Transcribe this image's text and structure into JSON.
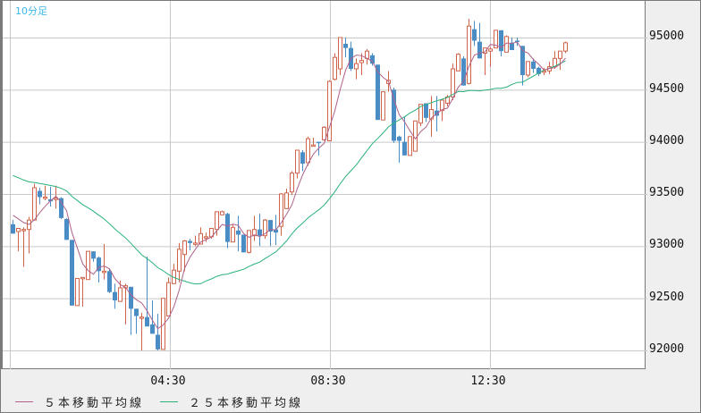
{
  "period_label": "10分足",
  "y_axis": {
    "labels": [
      "95000",
      "94500",
      "94000",
      "93500",
      "93000",
      "92500",
      "92000"
    ]
  },
  "x_axis": {
    "labels": [
      "04:30",
      "08:30",
      "12:30"
    ]
  },
  "legend": [
    {
      "label": "５本移動平均線",
      "color": "#b0608a"
    },
    {
      "label": "２５本移動平均線",
      "color": "#2ab27b"
    }
  ],
  "colors": {
    "up": "#d0644a",
    "down": "#4a8cc4",
    "ma5": "#b0608a",
    "ma25": "#2ab27b",
    "grid": "#c8c8c8"
  },
  "chart_data": {
    "type": "candlestick",
    "title": "10分足",
    "xlabel": "",
    "ylabel": "",
    "ylim": [
      91820,
      95350
    ],
    "y_ticks": [
      92000,
      92500,
      93000,
      93500,
      94000,
      94500,
      95000
    ],
    "x_tick_labels": [
      "04:30",
      "08:30",
      "12:30"
    ],
    "grid": true,
    "legend_position": "bottom",
    "series": [
      {
        "name": "５本移動平均線",
        "type": "line"
      },
      {
        "name": "２５本移動平均線",
        "type": "line"
      }
    ],
    "ohlc": [
      [
        93210,
        93250,
        93120,
        93120
      ],
      [
        93140,
        93160,
        92950,
        93170
      ],
      [
        93160,
        93180,
        92800,
        93160
      ],
      [
        93160,
        93280,
        92930,
        93250
      ],
      [
        93250,
        93600,
        93250,
        93560
      ],
      [
        93530,
        93560,
        93400,
        93470
      ],
      [
        93460,
        93580,
        93440,
        93470
      ],
      [
        93450,
        93570,
        93380,
        93430
      ],
      [
        93460,
        93580,
        93360,
        93460
      ],
      [
        93460,
        93470,
        93260,
        93270
      ],
      [
        93260,
        93270,
        93060,
        93060
      ],
      [
        93060,
        93060,
        92430,
        92430
      ],
      [
        92430,
        92690,
        92430,
        92690
      ],
      [
        92690,
        92690,
        92420,
        92700
      ],
      [
        92680,
        92950,
        92680,
        92950
      ],
      [
        92950,
        92950,
        92850,
        92880
      ],
      [
        92890,
        92900,
        92650,
        92760
      ],
      [
        92760,
        93020,
        92680,
        92760
      ],
      [
        92760,
        92780,
        92550,
        92560
      ],
      [
        92560,
        92640,
        92400,
        92480
      ],
      [
        92470,
        92670,
        92470,
        92600
      ],
      [
        92600,
        92640,
        92250,
        92620
      ],
      [
        92610,
        92610,
        92150,
        92400
      ],
      [
        92400,
        92400,
        92160,
        92330
      ],
      [
        92320,
        92360,
        92000,
        92320
      ],
      [
        92320,
        92900,
        92320,
        92230
      ],
      [
        92250,
        92480,
        92200,
        92160
      ],
      [
        92150,
        92350,
        92000,
        92010
      ],
      [
        92010,
        92500,
        92010,
        92500
      ],
      [
        92330,
        92700,
        92330,
        92650
      ],
      [
        92640,
        92830,
        92640,
        92770
      ],
      [
        92760,
        93030,
        92650,
        92970
      ],
      [
        92920,
        93060,
        92760,
        93050
      ],
      [
        93050,
        93070,
        92960,
        93030
      ],
      [
        93030,
        93100,
        93000,
        93030
      ],
      [
        93020,
        93180,
        93020,
        93120
      ],
      [
        93080,
        93130,
        93040,
        93090
      ],
      [
        93090,
        93170,
        93070,
        93170
      ],
      [
        93160,
        93330,
        93100,
        93330
      ],
      [
        93300,
        93340,
        93310,
        93330
      ],
      [
        93310,
        93320,
        92980,
        93040
      ],
      [
        93040,
        93210,
        93040,
        93180
      ],
      [
        93150,
        93290,
        92950,
        93110
      ],
      [
        93110,
        92950,
        92940,
        92940
      ],
      [
        92940,
        93150,
        92930,
        93150
      ],
      [
        93100,
        93290,
        93050,
        93160
      ],
      [
        93160,
        93310,
        93000,
        93100
      ],
      [
        93100,
        93260,
        93070,
        93250
      ],
      [
        93250,
        93150,
        93000,
        93140
      ],
      [
        93160,
        93300,
        93010,
        93130
      ],
      [
        93190,
        93510,
        93100,
        93500
      ],
      [
        93360,
        93550,
        93380,
        93510
      ],
      [
        93520,
        93720,
        93490,
        93700
      ],
      [
        93700,
        93890,
        93650,
        93920
      ],
      [
        93900,
        93920,
        93720,
        93790
      ],
      [
        93800,
        94050,
        93770,
        94030
      ],
      [
        93970,
        94040,
        93990,
        93970
      ],
      [
        94000,
        94000,
        93870,
        93990
      ],
      [
        94020,
        94150,
        94010,
        94140
      ],
      [
        94010,
        94590,
        94010,
        94580
      ],
      [
        94600,
        94850,
        94590,
        94810
      ],
      [
        94700,
        95000,
        94640,
        95000
      ],
      [
        94940,
        95000,
        94810,
        94900
      ],
      [
        94900,
        94960,
        94680,
        94700
      ],
      [
        94700,
        94800,
        94600,
        94750
      ],
      [
        94760,
        94850,
        94640,
        94780
      ],
      [
        94800,
        94890,
        94740,
        94870
      ],
      [
        94830,
        94850,
        94730,
        94750
      ],
      [
        94740,
        94740,
        94210,
        94210
      ],
      [
        94210,
        94390,
        94210,
        94480
      ],
      [
        94560,
        94680,
        94480,
        94590
      ],
      [
        94500,
        94520,
        93990,
        94010
      ],
      [
        94050,
        94060,
        93800,
        94010
      ],
      [
        94000,
        94240,
        94000,
        93870
      ],
      [
        93870,
        94000,
        93920,
        94050
      ],
      [
        93910,
        94060,
        93910,
        94200
      ],
      [
        94180,
        94350,
        94150,
        94360
      ],
      [
        94370,
        94360,
        94190,
        94230
      ],
      [
        94220,
        94440,
        94050,
        94310
      ],
      [
        94300,
        94440,
        94100,
        94250
      ],
      [
        94300,
        94400,
        94200,
        94400
      ],
      [
        94370,
        94450,
        94340,
        94430
      ],
      [
        94430,
        94750,
        94400,
        94700
      ],
      [
        94680,
        94850,
        94700,
        94840
      ],
      [
        94800,
        94820,
        94540,
        94540
      ],
      [
        94560,
        95180,
        94550,
        95110
      ],
      [
        95080,
        95160,
        94920,
        94970
      ],
      [
        94960,
        95140,
        94880,
        94800
      ],
      [
        94850,
        94850,
        94640,
        94900
      ],
      [
        94870,
        94910,
        94720,
        94890
      ],
      [
        94900,
        95060,
        94960,
        95070
      ],
      [
        95070,
        95030,
        94820,
        94870
      ],
      [
        94860,
        95020,
        94900,
        95010
      ],
      [
        94950,
        95000,
        94890,
        94880
      ],
      [
        94970,
        95000,
        94920,
        94960
      ],
      [
        94920,
        94920,
        94540,
        94640
      ],
      [
        94640,
        94640,
        94620,
        94770
      ],
      [
        94770,
        94800,
        94660,
        94700
      ],
      [
        94710,
        94720,
        94630,
        94650
      ],
      [
        94680,
        94710,
        94640,
        94680
      ],
      [
        94680,
        94770,
        94650,
        94720
      ],
      [
        94720,
        94870,
        94700,
        94800
      ],
      [
        94800,
        94850,
        94690,
        94870
      ],
      [
        94870,
        94960,
        94850,
        94950
      ]
    ]
  }
}
